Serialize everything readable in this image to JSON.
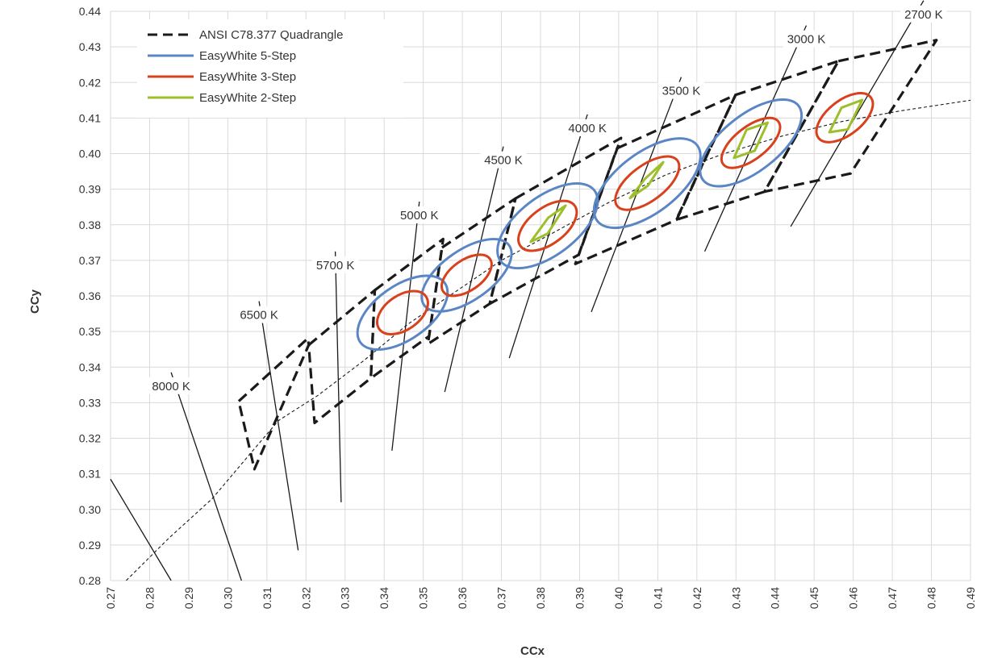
{
  "chart_data": {
    "type": "scatter",
    "xlabel": "CCx",
    "ylabel": "CCy",
    "xlim": [
      0.27,
      0.49
    ],
    "ylim": [
      0.28,
      0.44
    ],
    "x_ticks": [
      "0.27",
      "0.28",
      "0.29",
      "0.30",
      "0.31",
      "0.32",
      "0.33",
      "0.34",
      "0.35",
      "0.36",
      "0.37",
      "0.38",
      "0.39",
      "0.40",
      "0.41",
      "0.42",
      "0.43",
      "0.44",
      "0.45",
      "0.46",
      "0.47",
      "0.48",
      "0.49"
    ],
    "y_ticks": [
      "0.28",
      "0.29",
      "0.30",
      "0.31",
      "0.32",
      "0.33",
      "0.34",
      "0.35",
      "0.36",
      "0.37",
      "0.38",
      "0.39",
      "0.40",
      "0.41",
      "0.42",
      "0.43",
      "0.44"
    ],
    "grid": true,
    "legend_position": "top-left",
    "colors": {
      "quadrangle": "#1a1a1a",
      "step5": "#5b86c5",
      "step3": "#d9401c",
      "step2": "#9cbf2b",
      "locus": "#1a1a1a",
      "isotherm": "#1a1a1a",
      "grid": "#d9d9d9"
    },
    "legend": [
      {
        "label": "ANSI C78.377 Quadrangle",
        "style": "dash",
        "color_key": "quadrangle"
      },
      {
        "label": "EasyWhite 5-Step",
        "style": "solid",
        "color_key": "step5"
      },
      {
        "label": "EasyWhite 3-Step",
        "style": "solid",
        "color_key": "step3"
      },
      {
        "label": "EasyWhite 2-Step",
        "style": "solid",
        "color_key": "step2"
      }
    ],
    "planckian_locus": [
      [
        0.274,
        0.28
      ],
      [
        0.285,
        0.292
      ],
      [
        0.296,
        0.303
      ],
      [
        0.306,
        0.316
      ],
      [
        0.313,
        0.325
      ],
      [
        0.323,
        0.332
      ],
      [
        0.335,
        0.342
      ],
      [
        0.346,
        0.352
      ],
      [
        0.358,
        0.361
      ],
      [
        0.37,
        0.37
      ],
      [
        0.382,
        0.377
      ],
      [
        0.397,
        0.386
      ],
      [
        0.412,
        0.394
      ],
      [
        0.427,
        0.4
      ],
      [
        0.442,
        0.405
      ],
      [
        0.457,
        0.409
      ],
      [
        0.472,
        0.412
      ],
      [
        0.49,
        0.415
      ]
    ],
    "isotherms": [
      {
        "label": "8000 K",
        "from": [
          0.2855,
          0.3385
        ],
        "to": [
          0.3035,
          0.28
        ]
      },
      {
        "label": "",
        "from": [
          0.27,
          0.3085
        ],
        "to": [
          0.2855,
          0.28
        ]
      },
      {
        "label": "6500 K",
        "from": [
          0.308,
          0.3585
        ],
        "to": [
          0.318,
          0.2885
        ]
      },
      {
        "label": "5700 K",
        "from": [
          0.3275,
          0.3725
        ],
        "to": [
          0.329,
          0.302
        ]
      },
      {
        "label": "5000 K",
        "from": [
          0.349,
          0.3865
        ],
        "to": [
          0.342,
          0.3165
        ]
      },
      {
        "label": "4500 K",
        "from": [
          0.3705,
          0.402
        ],
        "to": [
          0.3555,
          0.333
        ]
      },
      {
        "label": "4000 K",
        "from": [
          0.392,
          0.411
        ],
        "to": [
          0.372,
          0.3425
        ]
      },
      {
        "label": "3500 K",
        "from": [
          0.416,
          0.4215
        ],
        "to": [
          0.393,
          0.3555
        ]
      },
      {
        "label": "3000 K",
        "from": [
          0.448,
          0.436
        ],
        "to": [
          0.422,
          0.3725
        ]
      },
      {
        "label": "2700 K",
        "from": [
          0.478,
          0.443
        ],
        "to": [
          0.444,
          0.3795
        ]
      }
    ],
    "quadrangles": [
      {
        "cct": "6500 K",
        "points": [
          [
            0.3028,
            0.3304
          ],
          [
            0.3205,
            0.3481
          ],
          [
            0.3207,
            0.3462
          ],
          [
            0.3068,
            0.3113
          ]
        ]
      },
      {
        "cct": "5700 K",
        "points": [
          [
            0.3207,
            0.3462
          ],
          [
            0.3376,
            0.3616
          ],
          [
            0.3366,
            0.3369
          ],
          [
            0.3222,
            0.3243
          ]
        ]
      },
      {
        "cct": "5000 K",
        "points": [
          [
            0.3376,
            0.3616
          ],
          [
            0.3551,
            0.376
          ],
          [
            0.3515,
            0.3487
          ],
          [
            0.3366,
            0.3369
          ]
        ]
      },
      {
        "cct": "4500 K",
        "points": [
          [
            0.3548,
            0.3736
          ],
          [
            0.3736,
            0.3874
          ],
          [
            0.367,
            0.3578
          ],
          [
            0.3512,
            0.3465
          ]
        ]
      },
      {
        "cct": "4000 K",
        "points": [
          [
            0.3736,
            0.3874
          ],
          [
            0.4006,
            0.4044
          ],
          [
            0.3898,
            0.3716
          ],
          [
            0.367,
            0.3578
          ]
        ]
      },
      {
        "cct": "3500 K",
        "points": [
          [
            0.3996,
            0.4015
          ],
          [
            0.4299,
            0.4165
          ],
          [
            0.4148,
            0.3814
          ],
          [
            0.3889,
            0.369
          ]
        ]
      },
      {
        "cct": "3000 K",
        "points": [
          [
            0.4299,
            0.4165
          ],
          [
            0.4562,
            0.426
          ],
          [
            0.4373,
            0.3893
          ],
          [
            0.4147,
            0.3814
          ]
        ]
      },
      {
        "cct": "2700 K",
        "points": [
          [
            0.4562,
            0.426
          ],
          [
            0.4813,
            0.4319
          ],
          [
            0.4593,
            0.3944
          ],
          [
            0.4373,
            0.3893
          ]
        ]
      }
    ],
    "ellipses_5step": [
      {
        "cct": "5000 K",
        "center": [
          0.3447,
          0.3553
        ],
        "a": 0.0069,
        "b": 0.0145,
        "angle": 55
      },
      {
        "cct": "4500 K",
        "center": [
          0.3611,
          0.3658
        ],
        "a": 0.0064,
        "b": 0.0146,
        "angle": 55
      },
      {
        "cct": "4000 K",
        "center": [
          0.3818,
          0.3797
        ],
        "a": 0.0075,
        "b": 0.0165,
        "angle": 53
      },
      {
        "cct": "3500 K",
        "center": [
          0.4073,
          0.3917
        ],
        "a": 0.0077,
        "b": 0.0176,
        "angle": 53
      },
      {
        "cct": "3000 K",
        "center": [
          0.4338,
          0.403
        ],
        "a": 0.0072,
        "b": 0.017,
        "angle": 52
      }
    ],
    "ellipses_3step": [
      {
        "cct": "5000 K",
        "center": [
          0.3447,
          0.3553
        ],
        "a": 0.0044,
        "b": 0.008,
        "angle": 55
      },
      {
        "cct": "4500 K",
        "center": [
          0.3611,
          0.3658
        ],
        "a": 0.0039,
        "b": 0.008,
        "angle": 55
      },
      {
        "cct": "4000 K",
        "center": [
          0.3818,
          0.3797
        ],
        "a": 0.0046,
        "b": 0.0095,
        "angle": 53
      },
      {
        "cct": "3500 K",
        "center": [
          0.4073,
          0.3917
        ],
        "a": 0.0045,
        "b": 0.0106,
        "angle": 53
      },
      {
        "cct": "3000 K",
        "center": [
          0.4338,
          0.403
        ],
        "a": 0.0041,
        "b": 0.0098,
        "angle": 52
      },
      {
        "cct": "2700 K",
        "center": [
          0.4578,
          0.4101
        ],
        "a": 0.0044,
        "b": 0.0093,
        "angle": 52
      }
    ],
    "diamonds_2step": [
      {
        "cct": "4000 K",
        "points": [
          [
            0.3775,
            0.3752
          ],
          [
            0.382,
            0.382
          ],
          [
            0.3864,
            0.3854
          ],
          [
            0.3818,
            0.3775
          ]
        ]
      },
      {
        "cct": "3500 K",
        "points": [
          [
            0.4029,
            0.3875
          ],
          [
            0.4068,
            0.393
          ],
          [
            0.4114,
            0.3976
          ],
          [
            0.4075,
            0.391
          ]
        ]
      },
      {
        "cct": "3000 K",
        "points": [
          [
            0.4295,
            0.3988
          ],
          [
            0.4327,
            0.4067
          ],
          [
            0.4381,
            0.4087
          ],
          [
            0.4348,
            0.4008
          ]
        ]
      },
      {
        "cct": "2700 K",
        "points": [
          [
            0.4539,
            0.406
          ],
          [
            0.457,
            0.4129
          ],
          [
            0.4623,
            0.4151
          ],
          [
            0.4586,
            0.4068
          ]
        ]
      }
    ]
  }
}
